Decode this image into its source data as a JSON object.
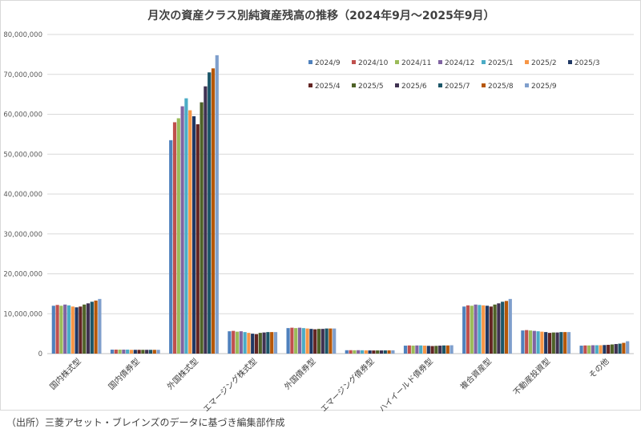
{
  "chart_data": {
    "type": "bar",
    "title": "月次の資産クラス別純資産残高の推移（2024年9月～2025年9月）",
    "source": "（出所）三菱アセット・ブレインズのデータに基づき編集部作成",
    "ylim": [
      0,
      80000000
    ],
    "yticks": [
      0,
      10000000,
      20000000,
      30000000,
      40000000,
      50000000,
      60000000,
      70000000,
      80000000
    ],
    "ytick_labels": [
      "0",
      "10,000,000",
      "20,000,000",
      "30,000,000",
      "40,000,000",
      "50,000,000",
      "60,000,000",
      "70,000,000",
      "80,000,000"
    ],
    "grid": true,
    "legend_position": "top-right",
    "categories": [
      "国内株式型",
      "国内債券型",
      "外国株式型",
      "エマージング株式型",
      "外国債券型",
      "エマージング債券型",
      "ハイイールド債券型",
      "複合資産型",
      "不動産投資型",
      "その他"
    ],
    "series": [
      {
        "name": "2024/9",
        "color": "#4f81bd",
        "values": [
          12000000,
          1000000,
          53500000,
          5600000,
          6400000,
          850000,
          2000000,
          11800000,
          5800000,
          2000000
        ]
      },
      {
        "name": "2024/10",
        "color": "#c0504d",
        "values": [
          12200000,
          1000000,
          58000000,
          5700000,
          6500000,
          860000,
          2050000,
          12100000,
          5900000,
          2050000
        ]
      },
      {
        "name": "2024/11",
        "color": "#9bbb59",
        "values": [
          12000000,
          1000000,
          59000000,
          5500000,
          6400000,
          840000,
          2000000,
          12000000,
          5800000,
          2050000
        ]
      },
      {
        "name": "2024/12",
        "color": "#8064a2",
        "values": [
          12300000,
          1000000,
          62000000,
          5600000,
          6500000,
          860000,
          2050000,
          12300000,
          5700000,
          2100000
        ]
      },
      {
        "name": "2025/1",
        "color": "#4bacc6",
        "values": [
          12100000,
          1000000,
          64000000,
          5400000,
          6400000,
          840000,
          2050000,
          12200000,
          5600000,
          2100000
        ]
      },
      {
        "name": "2025/2",
        "color": "#f79646",
        "values": [
          11800000,
          950000,
          61000000,
          5200000,
          6300000,
          820000,
          2000000,
          12100000,
          5500000,
          2100000
        ]
      },
      {
        "name": "2025/3",
        "color": "#1f3864",
        "values": [
          11600000,
          950000,
          59500000,
          5000000,
          6200000,
          800000,
          1950000,
          12000000,
          5400000,
          2150000
        ]
      },
      {
        "name": "2025/4",
        "color": "#632523",
        "values": [
          11800000,
          950000,
          57500000,
          4900000,
          6100000,
          790000,
          1900000,
          11800000,
          5200000,
          2200000
        ]
      },
      {
        "name": "2025/5",
        "color": "#4f6228",
        "values": [
          12300000,
          950000,
          63000000,
          5200000,
          6200000,
          800000,
          1950000,
          12300000,
          5300000,
          2300000
        ]
      },
      {
        "name": "2025/6",
        "color": "#3f3151",
        "values": [
          12600000,
          950000,
          67000000,
          5300000,
          6200000,
          800000,
          2000000,
          12600000,
          5300000,
          2400000
        ]
      },
      {
        "name": "2025/7",
        "color": "#1c5668",
        "values": [
          13000000,
          950000,
          70500000,
          5400000,
          6300000,
          810000,
          2050000,
          13000000,
          5400000,
          2500000
        ]
      },
      {
        "name": "2025/8",
        "color": "#b65708",
        "values": [
          13300000,
          950000,
          71500000,
          5400000,
          6300000,
          820000,
          2050000,
          13200000,
          5400000,
          2700000
        ]
      },
      {
        "name": "2025/9",
        "color": "#7f9fcc",
        "values": [
          13700000,
          950000,
          74800000,
          5400000,
          6300000,
          830000,
          2100000,
          13700000,
          5400000,
          3100000
        ]
      }
    ]
  }
}
